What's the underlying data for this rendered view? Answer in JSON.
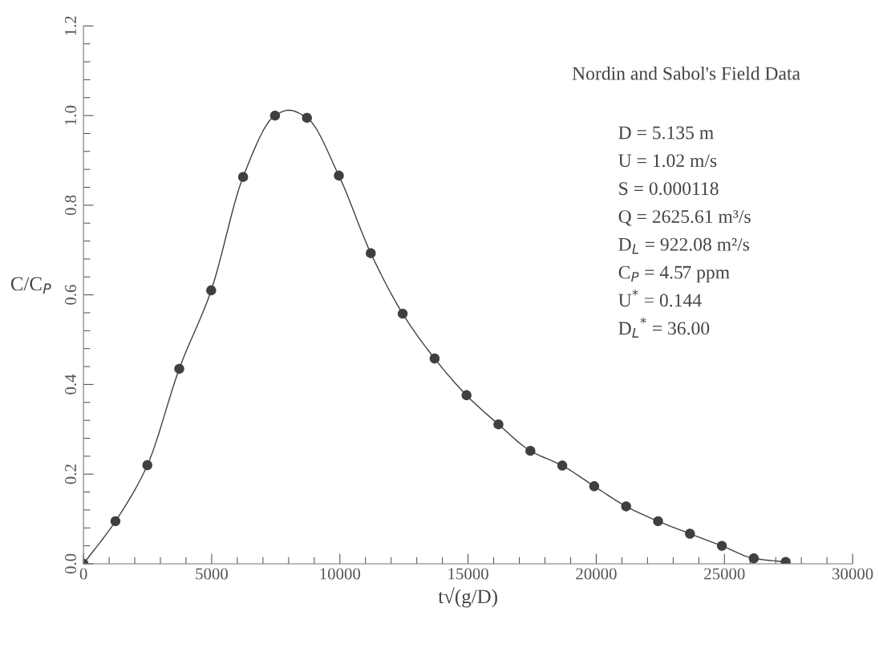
{
  "chart_data": {
    "type": "scatter",
    "xlabel": "t√(g/D)",
    "ylabel": "C/C$_{P}$",
    "x": [
      0,
      1245,
      2490,
      3735,
      4980,
      6225,
      7470,
      8715,
      9960,
      11205,
      12450,
      13695,
      14940,
      16185,
      17430,
      18675,
      19920,
      21165,
      22410,
      23655,
      24900,
      26145,
      27390
    ],
    "series": [
      {
        "color": "#404040",
        "marker": "circle",
        "values": [
          0.0,
          0.095,
          0.22,
          0.435,
          0.61,
          0.863,
          1.0,
          0.995,
          0.866,
          0.693,
          0.558,
          0.458,
          0.376,
          0.311,
          0.252,
          0.219,
          0.173,
          0.128,
          0.095,
          0.067,
          0.04,
          0.012,
          0.004
        ]
      },
      {
        "type": "line",
        "color": "#404040",
        "x": [
          0,
          1245,
          2490,
          3735,
          4980,
          6225,
          7470,
          8000,
          8715,
          9960,
          11205,
          12450,
          13695,
          14940,
          16185,
          17430,
          18675,
          19920,
          21165,
          22410,
          23655,
          24900,
          26145,
          27390
        ],
        "values": [
          0.0,
          0.095,
          0.22,
          0.435,
          0.61,
          0.863,
          1.0,
          1.012,
          0.995,
          0.866,
          0.693,
          0.558,
          0.458,
          0.376,
          0.311,
          0.252,
          0.219,
          0.173,
          0.128,
          0.095,
          0.067,
          0.04,
          0.012,
          0.004
        ]
      }
    ],
    "xlim": [
      0,
      30000
    ],
    "xticks": [
      0,
      5000,
      10000,
      15000,
      20000,
      25000,
      30000
    ],
    "ylim": [
      0,
      1.2
    ],
    "yticks": [
      {
        "value": 0,
        "label": "0.0"
      },
      0.2,
      0.4,
      0.6,
      0.8,
      {
        "value": 1.0,
        "label": "1.0"
      },
      1.2
    ],
    "grid": false,
    "legend": false,
    "annotations": [
      "Nordin and Sabol's Field Data",
      "D = 5.135 m",
      "U = 1.02 m/s",
      "S = 0.000118",
      "Q = 2625.61 m³/s",
      "D$_{L}$ = 922.08 m²/s",
      "C$_{P}$ = 4.57 ppm",
      "U$^{*}$ = 0.144",
      "D$_{L}$$^{*}$ = 36.00"
    ]
  }
}
